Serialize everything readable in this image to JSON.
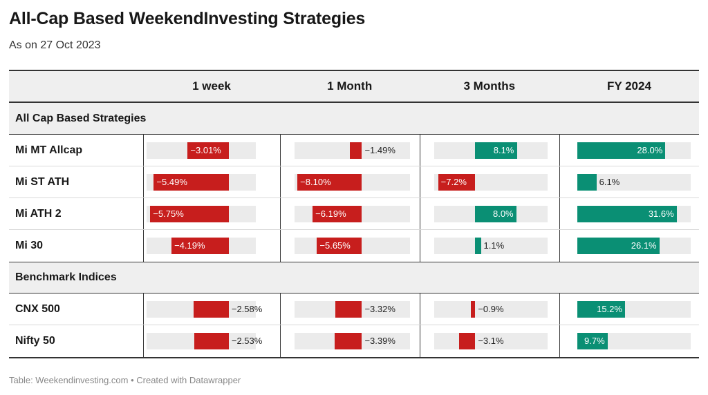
{
  "title": "All-Cap Based WeekendInvesting Strategies",
  "subtitle": "As on 27 Oct 2023",
  "footer": "Table: Weekendinvesting.com • Created with Datawrapper",
  "colors": {
    "negative": "#c71e1d",
    "positive": "#0a8f74",
    "track": "#ebebeb"
  },
  "chart_data": {
    "type": "table",
    "columns": [
      "1 week",
      "1 Month",
      "3 Months",
      "FY 2024"
    ],
    "column_ranges": [
      [
        -6,
        2
      ],
      [
        -8.5,
        6
      ],
      [
        -8,
        14
      ],
      [
        0,
        36
      ]
    ],
    "groups": [
      {
        "name": "All Cap Based Strategies",
        "rows": [
          {
            "name": "Mi MT Allcap",
            "values": [
              -3.01,
              -1.49,
              8.1,
              28.0
            ],
            "labels": [
              "−3.01%",
              "−1.49%",
              "8.1%",
              "28.0%"
            ]
          },
          {
            "name": "Mi ST ATH",
            "values": [
              -5.49,
              -8.1,
              -7.2,
              6.1
            ],
            "labels": [
              "−5.49%",
              "−8.10%",
              "−7.2%",
              "6.1%"
            ]
          },
          {
            "name": "Mi ATH 2",
            "values": [
              -5.75,
              -6.19,
              8.0,
              31.6
            ],
            "labels": [
              "−5.75%",
              "−6.19%",
              "8.0%",
              "31.6%"
            ]
          },
          {
            "name": "Mi 30",
            "values": [
              -4.19,
              -5.65,
              1.1,
              26.1
            ],
            "labels": [
              "−4.19%",
              "−5.65%",
              "1.1%",
              "26.1%"
            ]
          }
        ]
      },
      {
        "name": "Benchmark Indices",
        "rows": [
          {
            "name": "CNX 500",
            "values": [
              -2.58,
              -3.32,
              -0.9,
              15.2
            ],
            "labels": [
              "−2.58%",
              "−3.32%",
              "−0.9%",
              "15.2%"
            ]
          },
          {
            "name": "Nifty 50",
            "values": [
              -2.53,
              -3.39,
              -3.1,
              9.7
            ],
            "labels": [
              "−2.53%",
              "−3.39%",
              "−3.1%",
              "9.7%"
            ]
          }
        ]
      }
    ]
  }
}
